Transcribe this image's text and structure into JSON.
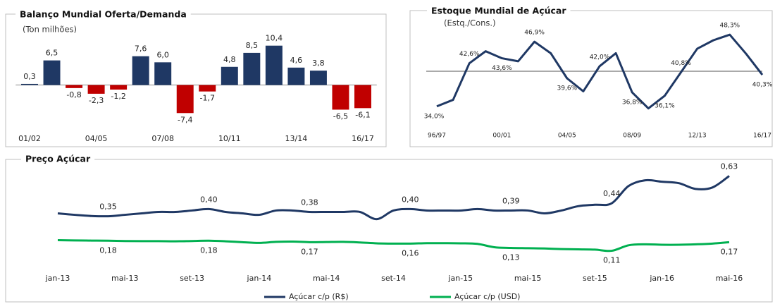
{
  "chart_data": [
    {
      "type": "bar",
      "title": "Balanço Mundial Oferta/Demanda",
      "subtitle": "(Ton milhões)",
      "categories": [
        "01/02",
        null,
        null,
        "04/05",
        null,
        null,
        "07/08",
        null,
        null,
        "10/11",
        null,
        null,
        "13/14",
        null,
        null,
        "16/17"
      ],
      "values": [
        0.3,
        6.5,
        -0.8,
        -2.3,
        -1.2,
        7.6,
        6.0,
        -7.4,
        -1.7,
        4.8,
        8.5,
        10.4,
        4.6,
        3.8,
        -6.5,
        -6.1
      ],
      "value_labels": [
        "0,3",
        "6,5",
        "-0,8",
        "-2,3",
        "-1,2",
        "7,6",
        "6,0",
        "-7,4",
        "-1,7",
        "4,8",
        "8,5",
        "10,4",
        "4,6",
        "3,8",
        "-6,5",
        "-6,1"
      ],
      "color": "#1f3864",
      "negative_color": "#c00000",
      "ylim": [
        -12,
        15
      ]
    },
    {
      "type": "line",
      "title": "Estoque Mundial de Açúcar",
      "subtitle": "(Estq./Cons.)",
      "categories": [
        "96/97",
        null,
        null,
        null,
        "00/01",
        null,
        null,
        null,
        "04/05",
        null,
        null,
        null,
        "08/09",
        null,
        null,
        null,
        "12/13",
        null,
        null,
        null,
        "16/17"
      ],
      "values": [
        34.0,
        35.3,
        42.6,
        45.0,
        43.6,
        43.0,
        46.9,
        44.6,
        39.6,
        37.0,
        42.0,
        44.6,
        36.8,
        33.6,
        36.1,
        40.8,
        45.5,
        47.2,
        48.3,
        44.5,
        40.3
      ],
      "value_labels": [
        "34,0%",
        null,
        "42,6%",
        null,
        "43,6%",
        null,
        "46,9%",
        null,
        "39,6%",
        null,
        "42,0%",
        null,
        "36,8%",
        null,
        "36,1%",
        "40,8%",
        null,
        null,
        "48,3%",
        null,
        "40,3%"
      ],
      "color": "#1f3864",
      "hline": 41.0,
      "ylim": [
        32,
        51
      ]
    },
    {
      "type": "line",
      "title": "Preço Açúcar",
      "smooth": true,
      "categories": [
        "jan-13",
        null,
        null,
        null,
        "mai-13",
        null,
        null,
        null,
        "set-13",
        null,
        null,
        null,
        "jan-14",
        null,
        null,
        null,
        "mai-14",
        null,
        null,
        null,
        "set-14",
        null,
        null,
        null,
        "jan-15",
        null,
        null,
        null,
        "mai-15",
        null,
        null,
        null,
        "set-15",
        null,
        null,
        null,
        "jan-16",
        null,
        null,
        null,
        "mai-16"
      ],
      "series": [
        {
          "name": "Açúcar c/p (R$)",
          "color": "#1f3864",
          "values": [
            0.37,
            0.36,
            0.352,
            0.35,
            0.36,
            0.37,
            0.38,
            0.38,
            0.39,
            0.4,
            0.38,
            0.37,
            0.36,
            0.39,
            0.39,
            0.38,
            0.38,
            0.38,
            0.38,
            0.33,
            0.39,
            0.4,
            0.39,
            0.39,
            0.39,
            0.4,
            0.39,
            0.39,
            0.39,
            0.37,
            0.39,
            0.42,
            0.43,
            0.44,
            0.56,
            0.6,
            0.59,
            0.58,
            0.54,
            0.55,
            0.63
          ],
          "value_labels": [
            null,
            null,
            null,
            "0,35",
            null,
            null,
            null,
            null,
            null,
            "0,40",
            null,
            null,
            null,
            null,
            null,
            "0,38",
            null,
            null,
            null,
            null,
            null,
            "0,40",
            null,
            null,
            null,
            null,
            null,
            "0,39",
            null,
            null,
            null,
            null,
            null,
            "0,44",
            null,
            null,
            null,
            null,
            null,
            null,
            "0,63"
          ]
        },
        {
          "name": "Açúcar c/p (USD)",
          "color": "#00b050",
          "values": [
            0.184,
            0.182,
            0.181,
            0.18,
            0.178,
            0.177,
            0.177,
            0.176,
            0.178,
            0.18,
            0.176,
            0.17,
            0.165,
            0.172,
            0.174,
            0.17,
            0.171,
            0.172,
            0.168,
            0.162,
            0.16,
            0.16,
            0.163,
            0.163,
            0.162,
            0.158,
            0.135,
            0.13,
            0.128,
            0.126,
            0.122,
            0.12,
            0.118,
            0.11,
            0.148,
            0.155,
            0.152,
            0.152,
            0.155,
            0.16,
            0.17
          ],
          "value_labels": [
            null,
            null,
            null,
            "0,18",
            null,
            null,
            null,
            null,
            null,
            "0,18",
            null,
            null,
            null,
            null,
            null,
            "0,17",
            null,
            null,
            null,
            null,
            null,
            "0,16",
            null,
            null,
            null,
            null,
            null,
            "0,13",
            null,
            null,
            null,
            null,
            null,
            "0,11",
            null,
            null,
            null,
            null,
            null,
            null,
            "0,17"
          ]
        }
      ],
      "ylim": [
        0,
        0.75
      ]
    }
  ]
}
